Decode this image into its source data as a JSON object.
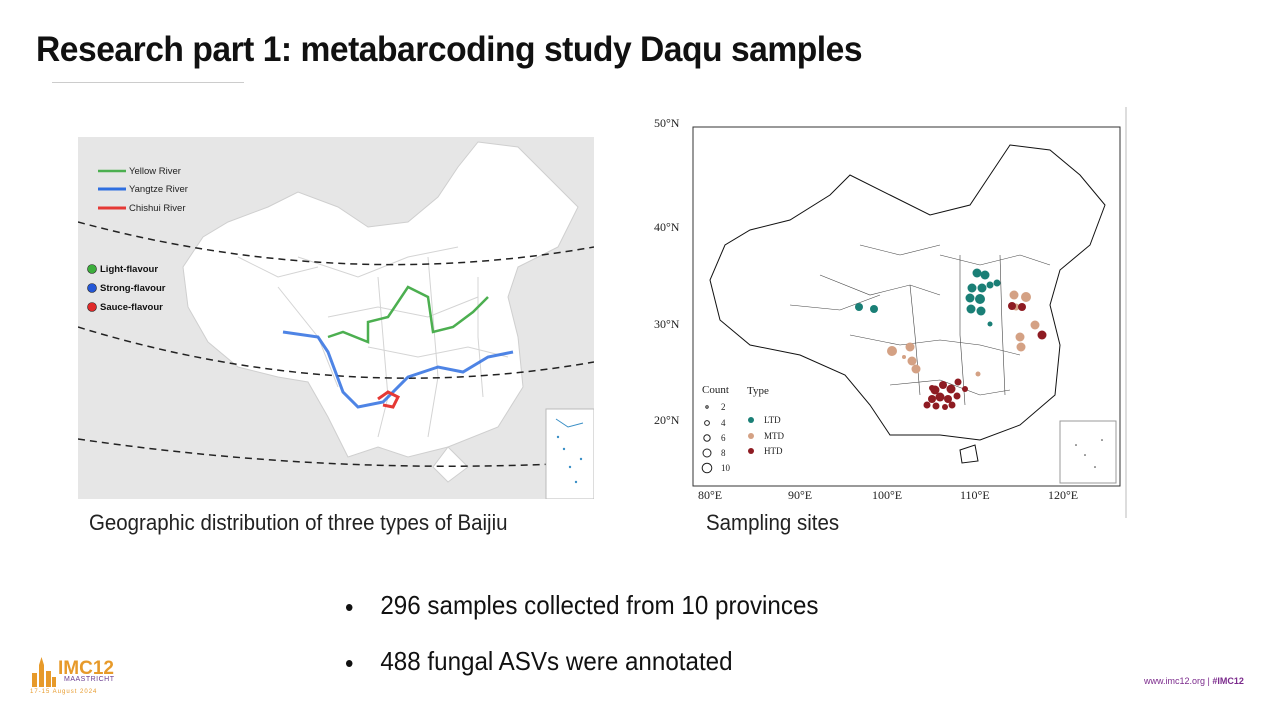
{
  "slide": {
    "title": "Research part 1: metabarcoding study Daqu samples"
  },
  "left_map": {
    "legend_rivers": [
      "Yellow River",
      "Yangtze River",
      "Chishui River"
    ],
    "legend_flavours": [
      "Light-flavour",
      "Strong-flavour",
      "Sauce-flavour"
    ],
    "colors": {
      "yellow_river": "#4caf50",
      "yangtze_river": "#2f6fe0",
      "chishui_river": "#e53935",
      "light": "#3cae3c",
      "strong": "#2457d6",
      "sauce": "#e02a2a"
    },
    "caption": "Geographic distribution of three types of Baijiu"
  },
  "right_map": {
    "lat_labels": [
      "50°N",
      "40°N",
      "30°N",
      "20°N"
    ],
    "lon_labels": [
      "80°E",
      "90°E",
      "100°E",
      "110°E",
      "120°E"
    ],
    "count_title": "Count",
    "count_values": [
      "2",
      "4",
      "6",
      "8",
      "10"
    ],
    "type_title": "Type",
    "types": [
      "LTD",
      "MTD",
      "HTD"
    ],
    "colors": {
      "LTD": "#1a7f76",
      "MTD": "#d4a184",
      "HTD": "#8e1b22"
    },
    "caption": "Sampling sites"
  },
  "bullets": [
    "296 samples collected from 10 provinces",
    "488 fungal ASVs were annotated"
  ],
  "footer": {
    "logo_text": "IMC12",
    "logo_sub": "MAASTRICHT",
    "logo_date": "17-15 August 2024",
    "link_site": "www.imc12.org",
    "separator": "|",
    "link_hashtag": "#IMC12"
  }
}
